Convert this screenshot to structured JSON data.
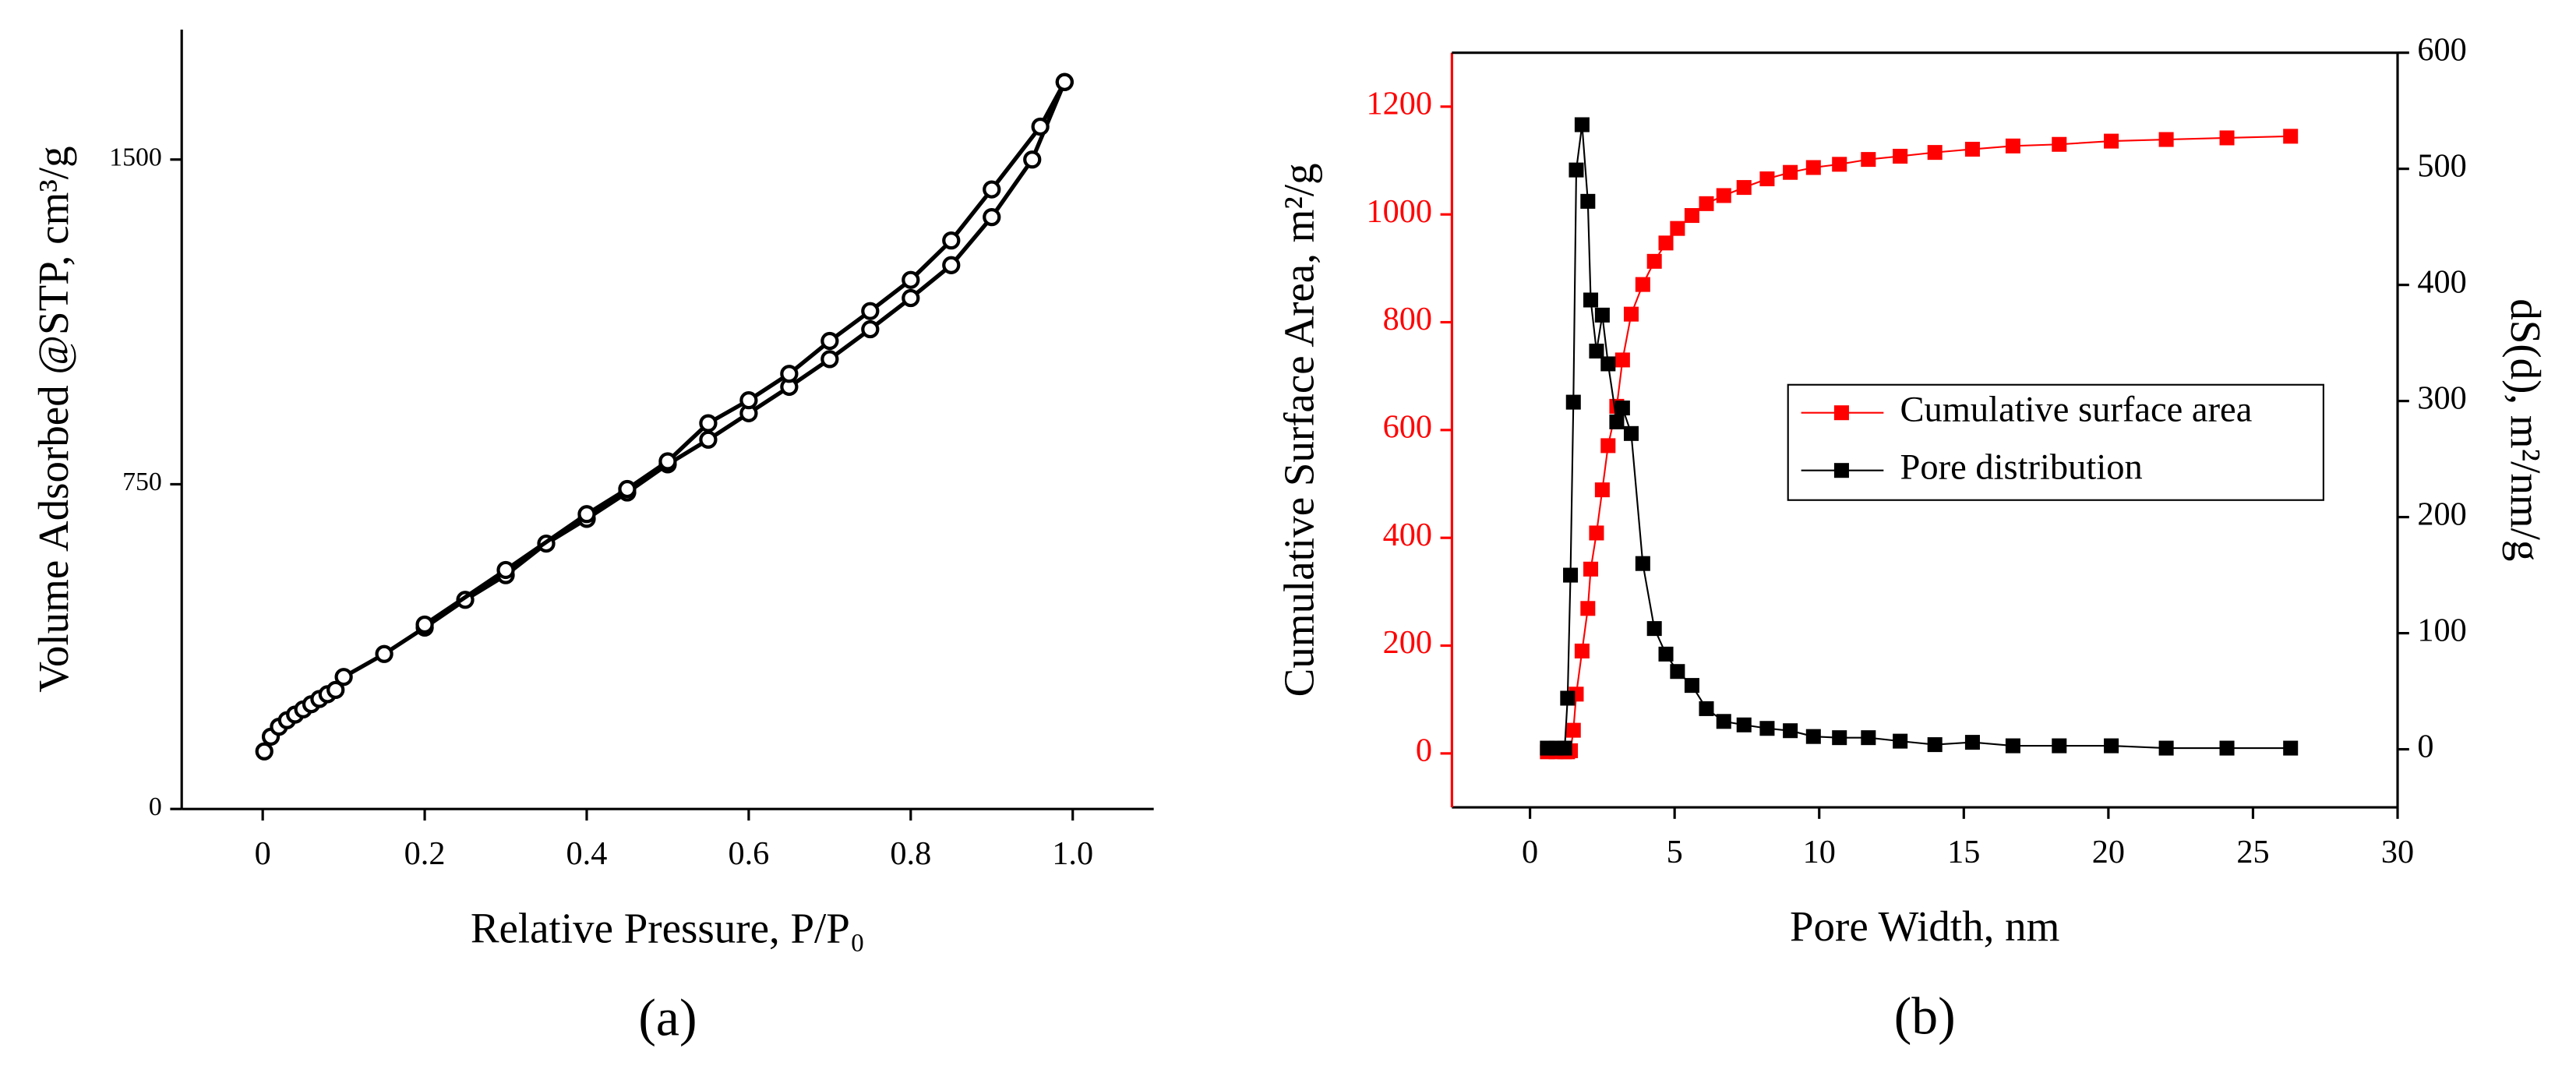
{
  "chart_data": [
    {
      "type": "line",
      "label": "(a)",
      "xlabel": "Relative Pressure, P/P₀",
      "ylabel": "Volume Adsorbed @STP, cm³/g",
      "marker": "circle",
      "frame": false,
      "xlim": [
        -0.1,
        1.1
      ],
      "xticks": [
        0,
        0.2,
        0.4,
        0.6,
        0.8,
        {
          "value": 1,
          "label": "1.0"
        }
      ],
      "ylim": [
        0,
        1800
      ],
      "yticks": [
        0,
        750,
        1500
      ],
      "series": [
        {
          "color": "#000000",
          "x": [
            0.002,
            0.01,
            0.02,
            0.03,
            0.04,
            0.05,
            0.06,
            0.07,
            0.08,
            0.09,
            0.1,
            0.15,
            0.2,
            0.25,
            0.3,
            0.35,
            0.4,
            0.45,
            0.5,
            0.55,
            0.6,
            0.65,
            0.7,
            0.75,
            0.8,
            0.85,
            0.9,
            0.95,
            0.99
          ],
          "values": [
            133,
            167,
            190,
            205,
            218,
            230,
            242,
            254,
            265,
            275,
            305,
            358,
            419,
            483,
            540,
            613,
            670,
            731,
            796,
            853,
            914,
            975,
            1039,
            1108,
            1180,
            1256,
            1367,
            1500,
            1679
          ]
        },
        {
          "color": "#000000",
          "x": [
            0.99,
            0.96,
            0.9,
            0.85,
            0.8,
            0.75,
            0.7,
            0.65,
            0.6,
            0.55,
            0.5,
            0.45,
            0.4,
            0.3,
            0.2
          ],
          "values": [
            1679,
            1576,
            1431,
            1313,
            1222,
            1150,
            1081,
            1005,
            944,
            891,
            803,
            739,
            681,
            552,
            426
          ]
        }
      ]
    },
    {
      "type": "line",
      "label": "(b)",
      "xlabel": "Pore Width, nm",
      "ylabel": "Cumulative Surface Area, m²/g",
      "y2label": "dS(d), m²/nm/g",
      "marker": "square",
      "frame": true,
      "ycolor": "#ff0000",
      "legend": "center right",
      "xlim": [
        -2.7,
        30
      ],
      "xticks": [
        0,
        5,
        10,
        15,
        20,
        25,
        30
      ],
      "ylim": [
        -100,
        1300
      ],
      "yticks": [
        0,
        200,
        400,
        600,
        800,
        1000,
        1200
      ],
      "y2lim": [
        -50,
        600
      ],
      "y2ticks": [
        0,
        100,
        200,
        300,
        400,
        500,
        600
      ],
      "x": [
        0.6,
        0.9,
        1.2,
        1.3,
        1.4,
        1.5,
        1.6,
        1.8,
        2.0,
        2.1,
        2.3,
        2.5,
        2.7,
        3.0,
        3.2,
        3.5,
        3.9,
        4.3,
        4.7,
        5.1,
        5.6,
        6.1,
        6.7,
        7.4,
        8.2,
        9.0,
        9.8,
        10.7,
        11.7,
        12.8,
        14.0,
        15.3,
        16.7,
        18.3,
        20.1,
        22.0,
        24.1,
        26.3
      ],
      "series": [
        {
          "name": "Cumulative surface area",
          "color": "#ff0000",
          "values": [
            3,
            3,
            3,
            3,
            5,
            43,
            110,
            190,
            269,
            342,
            409,
            489,
            571,
            644,
            730,
            815,
            870,
            913,
            947,
            974,
            998,
            1020,
            1035,
            1050,
            1066,
            1078,
            1087,
            1093,
            1102,
            1108,
            1115,
            1121,
            1127,
            1130,
            1136,
            1139,
            1142,
            1145
          ]
        },
        {
          "name": "Pore distribution",
          "color": "#000000",
          "axis": "y2",
          "values": [
            1,
            1,
            1,
            44,
            150,
            299,
            499,
            538,
            472,
            387,
            343,
            374,
            332,
            282,
            294,
            272,
            160,
            104,
            82,
            67,
            55,
            35,
            24,
            21,
            18,
            16,
            11,
            10,
            10,
            7,
            4,
            6,
            3,
            3,
            3,
            1,
            1,
            1
          ]
        }
      ]
    }
  ]
}
